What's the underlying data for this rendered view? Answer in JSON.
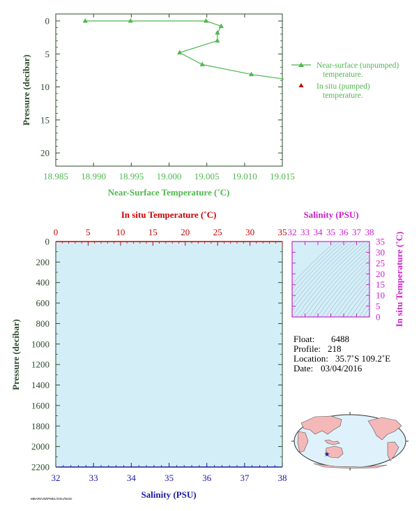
{
  "colors": {
    "green": "#4eb84e",
    "red": "#cc0000",
    "blue": "#1a1aa6",
    "magenta": "#cc22cc",
    "dark": "#2a4a2a",
    "plot_bg": "#d4eef8",
    "land": "#f5b8b8",
    "ocean": "#dff1fb"
  },
  "chart_data": [
    {
      "type": "line",
      "name": "near-surface-temperature-profile",
      "xlabel": "Near-Surface Temperature (˚C)",
      "ylabel": "Pressure (decibar)",
      "xlim": [
        18.985,
        19.015
      ],
      "ylim": [
        0,
        22
      ],
      "y_reversed": true,
      "x_ticks": [
        "18.985",
        "18.990",
        "18.995",
        "19.000",
        "19.005",
        "19.010",
        "19.015"
      ],
      "x_tick_values": [
        18.985,
        18.99,
        18.995,
        19.0,
        19.005,
        19.01,
        19.015
      ],
      "y_ticks": [
        "0",
        "5",
        "10",
        "15",
        "20"
      ],
      "y_tick_values": [
        0,
        5,
        10,
        15,
        20
      ],
      "series": [
        {
          "name": "Near-surface (unpumped) temperature.",
          "x": [
            18.9889,
            18.9949,
            19.0049,
            19.0069,
            19.0064,
            19.0064,
            19.0014,
            19.0044,
            19.0109,
            19.016
          ],
          "y": [
            0.0,
            0.0,
            0.0,
            0.8,
            1.8,
            3.0,
            4.8,
            6.6,
            8.1,
            8.8
          ]
        }
      ],
      "legend": [
        {
          "line1": "Near-surface (unpumped)",
          "line2": "temperature.",
          "marker": "triangle-line"
        },
        {
          "line1": "In situ (pumped)",
          "line2": "temperature.",
          "marker": "triangle"
        }
      ]
    },
    {
      "type": "line",
      "name": "profile-temperature-salinity",
      "top_axis_label": "In situ Temperature (˚C)",
      "bottom_axis_label": "Salinity (PSU)",
      "ylabel": "Pressure (decibar)",
      "top_xlim": [
        0,
        35
      ],
      "bottom_xlim": [
        32,
        38
      ],
      "ylim": [
        0,
        2200
      ],
      "y_reversed": true,
      "top_ticks": [
        "0",
        "5",
        "10",
        "15",
        "20",
        "25",
        "30",
        "35"
      ],
      "top_tick_values": [
        0,
        5,
        10,
        15,
        20,
        25,
        30,
        35
      ],
      "bottom_ticks": [
        "32",
        "33",
        "34",
        "35",
        "36",
        "37",
        "38"
      ],
      "bottom_tick_values": [
        32,
        33,
        34,
        35,
        36,
        37,
        38
      ],
      "y_ticks": [
        "0",
        "200",
        "400",
        "600",
        "800",
        "1000",
        "1200",
        "1400",
        "1600",
        "1800",
        "2000",
        "2200"
      ],
      "y_tick_values": [
        0,
        200,
        400,
        600,
        800,
        1000,
        1200,
        1400,
        1600,
        1800,
        2000,
        2200
      ]
    },
    {
      "type": "scatter",
      "name": "temperature-salinity-diagram",
      "top_axis_label": "Salinity (PSU)",
      "right_axis_label": "In situ Temperature (˚C)",
      "xlim": [
        32,
        38
      ],
      "ylim": [
        0,
        35
      ],
      "x_ticks": [
        "32",
        "33",
        "34",
        "35",
        "36",
        "37",
        "38"
      ],
      "x_tick_values": [
        32,
        33,
        34,
        35,
        36,
        37,
        38
      ],
      "y_ticks": [
        "0",
        "5",
        "10",
        "15",
        "20",
        "25",
        "30",
        "35"
      ],
      "y_tick_values": [
        0,
        5,
        10,
        15,
        20,
        25,
        30,
        35
      ]
    }
  ],
  "info": {
    "float_label": "Float:",
    "float_value": "6488",
    "profile_label": "Profile:",
    "profile_value": "218",
    "location_label": "Location:",
    "location_value": "35.7˚S  109.2˚E",
    "date_label": "Date:",
    "date_value": "03/04/2016"
  },
  "map": {
    "marker_lat": -35.7,
    "marker_lon": 109.2
  },
  "footer_text": "MBARI/UW/PMEL/OSU/NCEI"
}
